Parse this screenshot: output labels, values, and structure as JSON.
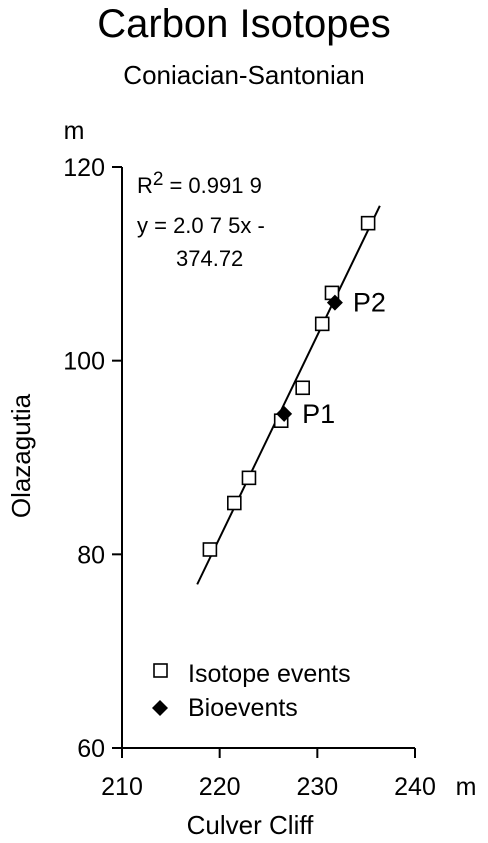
{
  "title": "Carbon Isotopes",
  "subtitle": "Coniacian-Santonian",
  "chart_data": {
    "type": "scatter",
    "xlabel": "Culver Cliff",
    "ylabel": "Olazagutia",
    "x_unit": "m",
    "y_unit": "m",
    "xlim": [
      210,
      240
    ],
    "ylim": [
      60,
      120
    ],
    "xticks": [
      210,
      220,
      230,
      240
    ],
    "yticks": [
      60,
      80,
      100,
      120
    ],
    "grid": false,
    "legend_position": "bottom-left",
    "series": [
      {
        "name": "Isotope events",
        "marker": "open-square",
        "points": [
          {
            "x": 219.0,
            "y": 80.5
          },
          {
            "x": 221.5,
            "y": 85.3
          },
          {
            "x": 223.0,
            "y": 87.9
          },
          {
            "x": 226.3,
            "y": 93.8
          },
          {
            "x": 228.5,
            "y": 97.2
          },
          {
            "x": 230.5,
            "y": 103.8
          },
          {
            "x": 231.5,
            "y": 107.0
          },
          {
            "x": 235.2,
            "y": 114.2
          }
        ]
      },
      {
        "name": "Bioevents",
        "marker": "filled-diamond",
        "points": [
          {
            "x": 226.6,
            "y": 94.5,
            "label": "P1"
          },
          {
            "x": 231.8,
            "y": 106.0,
            "label": "P2"
          }
        ]
      }
    ],
    "trendline": {
      "x_range": [
        217.7,
        236.4
      ],
      "r2_text": "= 0.991 9",
      "equation_line1": "y  = 2.0 7 5x -",
      "equation_line2": "374.72"
    }
  }
}
